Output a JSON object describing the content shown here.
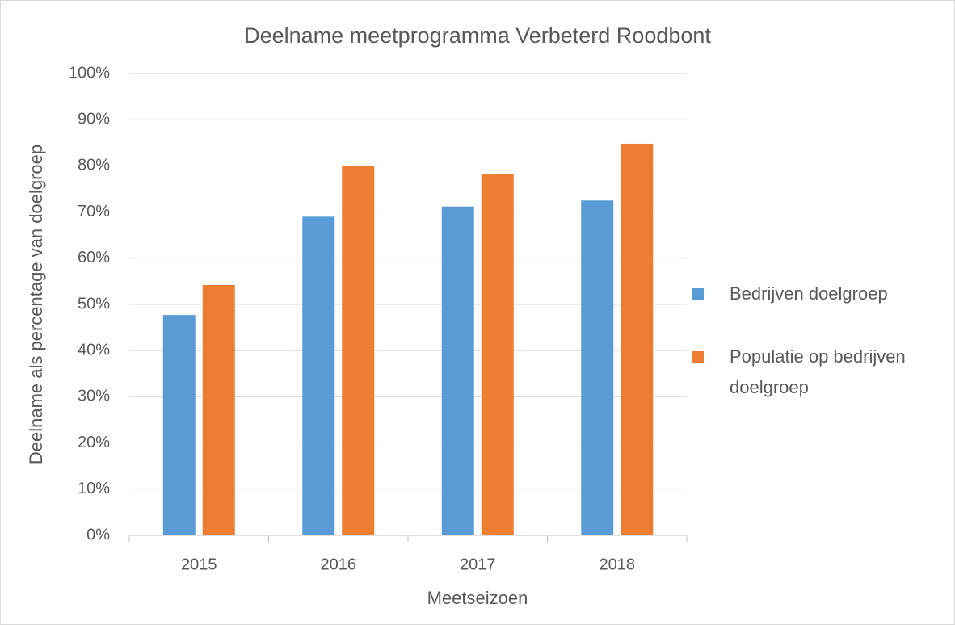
{
  "chart_data": {
    "type": "bar",
    "title": "Deelname meetprogramma Verbeterd Roodbont",
    "x_label": "Meetseizoen",
    "y_label": "Deelname als percentage van doelgroep",
    "categories": [
      "2015",
      "2016",
      "2017",
      "2018"
    ],
    "series": [
      {
        "name": "Bedrijven doelgroep",
        "color": "#5b9bd5",
        "values": [
          47.7,
          69,
          71.2,
          72.5
        ]
      },
      {
        "name": "Populatie op bedrijven doelgroep",
        "color": "#ed7d31",
        "values": [
          54.2,
          80,
          78.3,
          84.8
        ]
      }
    ],
    "ylim": [
      0,
      100
    ],
    "yticks": [
      {
        "value": 0,
        "label": "0%"
      },
      {
        "value": 10,
        "label": "10%"
      },
      {
        "value": 20,
        "label": "20%"
      },
      {
        "value": 30,
        "label": "30%"
      },
      {
        "value": 40,
        "label": "40%"
      },
      {
        "value": 50,
        "label": "50%"
      },
      {
        "value": 60,
        "label": "60%"
      },
      {
        "value": 70,
        "label": "70%"
      },
      {
        "value": 80,
        "label": "80%"
      },
      {
        "value": 90,
        "label": "90%"
      },
      {
        "value": 100,
        "label": "100%"
      }
    ],
    "grid": true,
    "legend": "right"
  }
}
